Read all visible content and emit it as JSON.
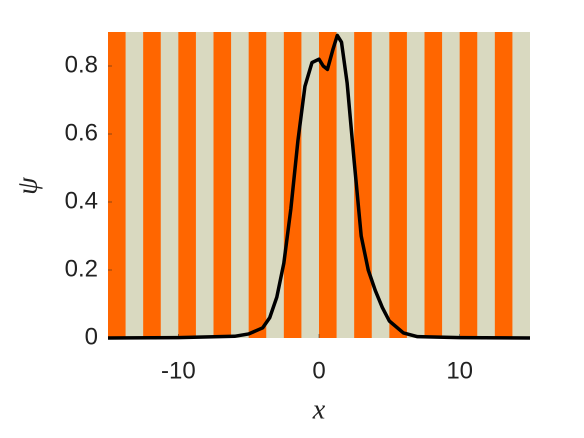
{
  "chart_data": {
    "type": "line",
    "x_label": "x",
    "y_label": "ψ",
    "x": [
      -15,
      -10,
      -6,
      -5,
      -4,
      -3.5,
      -3,
      -2.5,
      -2,
      -1.5,
      -1,
      -0.5,
      0,
      0.3,
      0.6,
      1,
      1.3,
      1.6,
      2,
      2.5,
      3,
      3.5,
      4,
      4.5,
      5,
      6,
      7,
      10,
      15
    ],
    "series": [
      {
        "color": "#000000",
        "values": [
          0,
          0.001,
          0.005,
          0.012,
          0.03,
          0.06,
          0.12,
          0.22,
          0.38,
          0.58,
          0.74,
          0.81,
          0.82,
          0.8,
          0.79,
          0.85,
          0.89,
          0.87,
          0.75,
          0.52,
          0.3,
          0.2,
          0.14,
          0.09,
          0.05,
          0.015,
          0.004,
          0.001,
          0
        ]
      }
    ],
    "xlim": [
      -15,
      15
    ],
    "ylim": [
      0,
      0.9
    ],
    "xticks": [
      -10,
      0,
      10
    ],
    "yticks": [
      0,
      0.2,
      0.4,
      0.6,
      0.8
    ],
    "background_stripes": {
      "period": 2.5,
      "colors": [
        "#ff6600",
        "#d9d9c0"
      ]
    }
  }
}
